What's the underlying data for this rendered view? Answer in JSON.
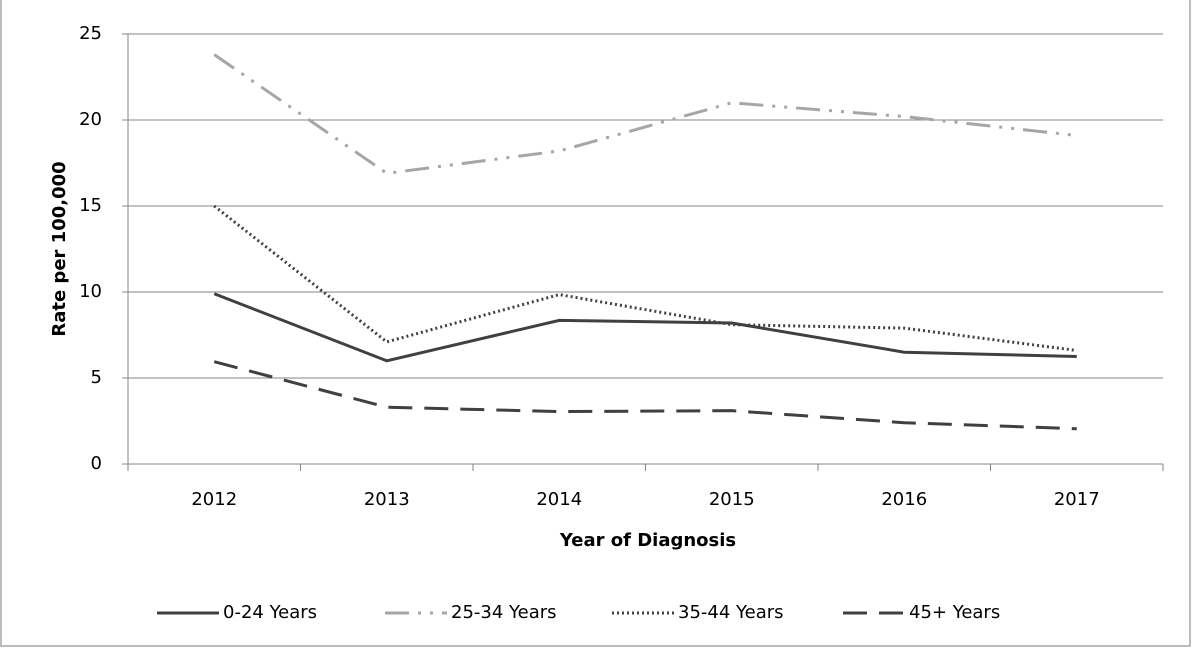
{
  "chart_data": {
    "type": "line",
    "x_label": "Year of Diagnosis",
    "y_label": "Rate per 100,000",
    "categories": [
      "2012",
      "2013",
      "2014",
      "2015",
      "2016",
      "2017"
    ],
    "series": [
      {
        "name": "0-24 Years",
        "color": "#404040",
        "dash": "solid",
        "values": [
          9.9,
          6.0,
          8.35,
          8.2,
          6.5,
          6.25
        ]
      },
      {
        "name": "25-34 Years",
        "color": "#a6a6a6",
        "dash": "dashdotdot",
        "values": [
          23.8,
          16.9,
          18.2,
          21.0,
          20.2,
          19.1
        ]
      },
      {
        "name": "35-44 Years",
        "color": "#404040",
        "dash": "dotted",
        "values": [
          15.0,
          7.1,
          9.85,
          8.1,
          7.9,
          6.6
        ]
      },
      {
        "name": "45+ Years",
        "color": "#404040",
        "dash": "dashed",
        "values": [
          5.95,
          3.3,
          3.05,
          3.1,
          2.4,
          2.05
        ]
      }
    ],
    "ylim": [
      0,
      25
    ],
    "yticks": [
      0,
      5,
      10,
      15,
      20,
      25
    ],
    "grid": true,
    "legend": "bottom"
  }
}
